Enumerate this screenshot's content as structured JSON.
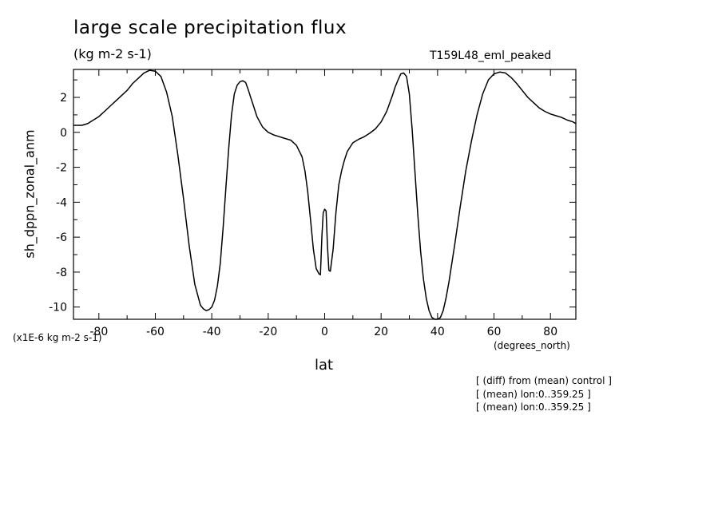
{
  "chart_data": {
    "type": "line",
    "title": "large scale precipitation flux",
    "units": "(kg m-2 s-1)",
    "run_label": "T159L48_eml_peaked",
    "ylabel": "sh_dppn_zonal_anm",
    "xlabel": "lat",
    "x_units": "(degrees_north)",
    "scale_note": "(x1E-6 kg m-2 s-1)",
    "xlim": [
      -89,
      89
    ],
    "ylim": [
      -10.7,
      3.6
    ],
    "x_ticks": [
      -80,
      -60,
      -40,
      -20,
      0,
      20,
      40,
      60,
      80
    ],
    "x_tick_labels": [
      "-80",
      "-60",
      "-40",
      "-20",
      "0",
      "20",
      "40",
      "60",
      "80"
    ],
    "y_ticks": [
      -10,
      -8,
      -6,
      -4,
      -2,
      0,
      2
    ],
    "y_tick_labels": [
      "-10",
      "-8",
      "-6",
      "-4",
      "-2",
      "0",
      "2"
    ],
    "grid": false,
    "series": [
      {
        "x": [
          -89,
          -86,
          -84,
          -82,
          -80,
          -78,
          -76,
          -74,
          -72,
          -70,
          -68,
          -66,
          -64,
          -62,
          -60,
          -58,
          -56,
          -54,
          -52,
          -50,
          -48,
          -46,
          -44,
          -43,
          -42,
          -41,
          -40,
          -39,
          -38,
          -37,
          -36,
          -35,
          -34,
          -33,
          -32,
          -31,
          -30,
          -29,
          -28,
          -27,
          -26,
          -25,
          -24,
          -22,
          -20,
          -18,
          -16,
          -14,
          -12,
          -10,
          -8,
          -7,
          -6,
          -5,
          -4,
          -3,
          -2,
          -1.5,
          -1,
          -0.5,
          0,
          0.5,
          1,
          1.5,
          2,
          3,
          4,
          5,
          6,
          7,
          8,
          10,
          12,
          14,
          16,
          18,
          20,
          22,
          24,
          25,
          26,
          27,
          28,
          29,
          30,
          31,
          32,
          33,
          34,
          35,
          36,
          37,
          38,
          39,
          40,
          41,
          42,
          43,
          44,
          46,
          48,
          50,
          52,
          54,
          56,
          58,
          60,
          62,
          64,
          66,
          68,
          70,
          72,
          74,
          76,
          78,
          80,
          82,
          84,
          86,
          88,
          89
        ],
        "y": [
          0.4,
          0.4,
          0.5,
          0.7,
          0.9,
          1.2,
          1.5,
          1.8,
          2.1,
          2.4,
          2.8,
          3.1,
          3.4,
          3.55,
          3.5,
          3.2,
          2.3,
          0.9,
          -1.3,
          -3.8,
          -6.5,
          -8.7,
          -9.9,
          -10.1,
          -10.2,
          -10.15,
          -10.0,
          -9.6,
          -8.8,
          -7.5,
          -5.5,
          -3.2,
          -0.9,
          1.0,
          2.2,
          2.7,
          2.9,
          2.95,
          2.85,
          2.4,
          1.9,
          1.4,
          0.9,
          0.3,
          0.0,
          -0.15,
          -0.25,
          -0.35,
          -0.45,
          -0.75,
          -1.4,
          -2.2,
          -3.4,
          -5.0,
          -6.7,
          -7.8,
          -8.1,
          -8.15,
          -6.0,
          -4.6,
          -4.4,
          -4.5,
          -6.5,
          -7.9,
          -7.95,
          -6.7,
          -4.6,
          -3.0,
          -2.2,
          -1.6,
          -1.1,
          -0.6,
          -0.4,
          -0.25,
          -0.05,
          0.2,
          0.6,
          1.2,
          2.1,
          2.6,
          3.0,
          3.35,
          3.4,
          3.2,
          2.2,
          0.2,
          -2.3,
          -4.7,
          -6.8,
          -8.4,
          -9.5,
          -10.2,
          -10.6,
          -10.75,
          -10.7,
          -10.6,
          -10.2,
          -9.5,
          -8.6,
          -6.5,
          -4.3,
          -2.2,
          -0.5,
          1.0,
          2.2,
          3.0,
          3.35,
          3.45,
          3.4,
          3.15,
          2.8,
          2.4,
          2.0,
          1.7,
          1.4,
          1.2,
          1.05,
          0.95,
          0.85,
          0.7,
          0.6,
          0.5
        ]
      }
    ]
  },
  "notes": [
    "[ (diff) from (mean) control ]",
    "[ (mean) lon:0..359.25 ]",
    "[ (mean) lon:0..359.25 ]"
  ]
}
